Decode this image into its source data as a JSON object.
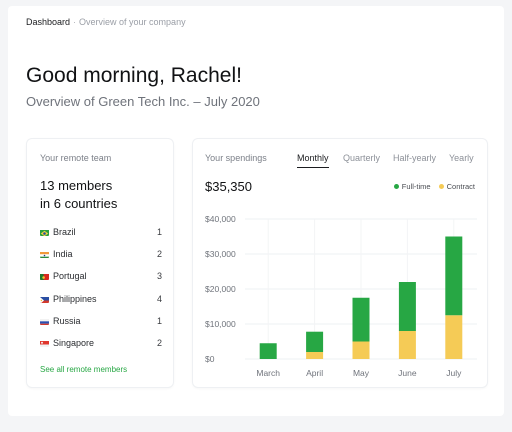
{
  "breadcrumb": {
    "root": "Dashboard",
    "current": "Overview of your company"
  },
  "header": {
    "greeting": "Good morning, Rachel!",
    "subtitle": "Overview of Green Tech Inc. – July 2020"
  },
  "team": {
    "label": "Your remote team",
    "headline_line1": "13 members",
    "headline_line2": "in 6 countries",
    "countries": [
      {
        "name": "Brazil",
        "count": "1",
        "flag": "brazil-flag-icon"
      },
      {
        "name": "India",
        "count": "2",
        "flag": "india-flag-icon"
      },
      {
        "name": "Portugal",
        "count": "3",
        "flag": "portugal-flag-icon"
      },
      {
        "name": "Philippines",
        "count": "4",
        "flag": "philippines-flag-icon"
      },
      {
        "name": "Russia",
        "count": "1",
        "flag": "russia-flag-icon"
      },
      {
        "name": "Singapore",
        "count": "2",
        "flag": "singapore-flag-icon"
      }
    ],
    "see_all": "See all remote members"
  },
  "spendings": {
    "label": "Your spendings",
    "tabs": [
      "Monthly",
      "Quarterly",
      "Half-yearly",
      "Yearly"
    ],
    "active_tab": "Monthly",
    "total": "$35,350"
  },
  "colors": {
    "fulltime": "#27a744",
    "contract": "#f5cb56",
    "accent": "#27a744"
  },
  "chart_data": {
    "type": "bar",
    "stacked": true,
    "categories": [
      "March",
      "April",
      "May",
      "June",
      "July"
    ],
    "series": [
      {
        "name": "Contract",
        "values": [
          0,
          2000,
          5000,
          8000,
          12500
        ]
      },
      {
        "name": "Full-time",
        "values": [
          4500,
          5800,
          12500,
          14000,
          22500
        ]
      }
    ],
    "y_ticks": [
      "$0",
      "$10,000",
      "$20,000",
      "$30,000",
      "$40,000"
    ],
    "ylim": [
      0,
      40000
    ],
    "legend_position": "top-right",
    "grid": true
  }
}
